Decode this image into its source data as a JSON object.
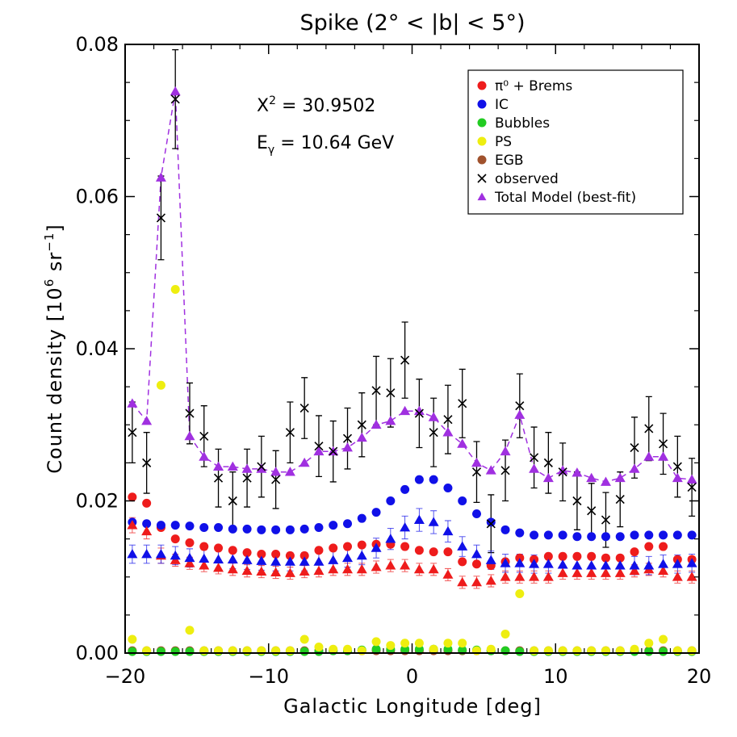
{
  "chart_data": {
    "type": "scatter",
    "title": "Spike (2° < |b| < 5°)",
    "xlabel": "Galactic Longitude [deg]",
    "ylabel": {
      "main": "Count density",
      "unit_open": "[10",
      "unit_sup1": "6",
      "unit_mid": " sr",
      "unit_sup2": "−1",
      "unit_close": "]"
    },
    "xlim": [
      -20,
      20
    ],
    "ylim": [
      0,
      0.08
    ],
    "xticks": [
      -20,
      -10,
      0,
      10,
      20
    ],
    "xtick_labels": [
      "−20",
      "−10",
      "0",
      "10",
      "20"
    ],
    "yticks": [
      0,
      0.02,
      0.04,
      0.06,
      0.08
    ],
    "ytick_labels": [
      "0.00",
      "0.02",
      "0.04",
      "0.06",
      "0.08"
    ],
    "annotations": {
      "chi2_label": "Χ",
      "chi2_sup": "2",
      "chi2_value": " = 30.9502",
      "egamma_label": "E",
      "egamma_sub": "γ",
      "egamma_value": " = 10.64 GeV"
    },
    "legend_position": "top-right",
    "legend": [
      {
        "label": "π⁰ + Brems",
        "marker": "circle",
        "color": "#ee1c1c"
      },
      {
        "label": "IC",
        "marker": "circle",
        "color": "#1010e8"
      },
      {
        "label": "Bubbles",
        "marker": "circle",
        "color": "#22cc22"
      },
      {
        "label": "PS",
        "marker": "circle",
        "color": "#eeee10"
      },
      {
        "label": "EGB",
        "marker": "circle",
        "color": "#a0522d"
      },
      {
        "label": "observed",
        "marker": "x",
        "color": "#000000"
      },
      {
        "label": "Total Model (best-fit)",
        "marker": "triangle",
        "color": "#a030e0"
      }
    ],
    "x": [
      -19.5,
      -18.5,
      -17.5,
      -16.5,
      -15.5,
      -14.5,
      -13.5,
      -12.5,
      -11.5,
      -10.5,
      -9.5,
      -8.5,
      -7.5,
      -6.5,
      -5.5,
      -4.5,
      -3.5,
      -2.5,
      -1.5,
      -0.5,
      0.5,
      1.5,
      2.5,
      3.5,
      4.5,
      5.5,
      6.5,
      7.5,
      8.5,
      9.5,
      10.5,
      11.5,
      12.5,
      13.5,
      14.5,
      15.5,
      16.5,
      17.5,
      18.5,
      19.5
    ],
    "series": [
      {
        "name": "π⁰ + Brems",
        "color": "#ee1c1c",
        "marker": "circle",
        "values": [
          0.0205,
          0.0197,
          0.0165,
          0.015,
          0.0145,
          0.014,
          0.0138,
          0.0135,
          0.0132,
          0.013,
          0.013,
          0.0128,
          0.0128,
          0.0135,
          0.0138,
          0.014,
          0.0142,
          0.0143,
          0.0143,
          0.014,
          0.0135,
          0.0133,
          0.0133,
          0.012,
          0.0117,
          0.0115,
          0.012,
          0.0125,
          0.0123,
          0.0127,
          0.0127,
          0.0127,
          0.0127,
          0.0125,
          0.0125,
          0.0133,
          0.014,
          0.014,
          0.0123,
          0.0123
        ]
      },
      {
        "name": "IC",
        "color": "#1010e8",
        "marker": "circle",
        "values": [
          0.0172,
          0.017,
          0.0168,
          0.0168,
          0.0167,
          0.0165,
          0.0165,
          0.0163,
          0.0163,
          0.0162,
          0.0162,
          0.0162,
          0.0163,
          0.0165,
          0.0168,
          0.017,
          0.0177,
          0.0185,
          0.02,
          0.0215,
          0.0228,
          0.0228,
          0.0217,
          0.02,
          0.0183,
          0.0172,
          0.0162,
          0.0158,
          0.0155,
          0.0155,
          0.0155,
          0.0153,
          0.0153,
          0.0153,
          0.0153,
          0.0155,
          0.0155,
          0.0155,
          0.0155,
          0.0155
        ]
      },
      {
        "name": "Bubbles",
        "color": "#22cc22",
        "marker": "circle",
        "values": [
          0.0002,
          0.0002,
          0.0002,
          0.0002,
          0.0002,
          0.0002,
          0.0002,
          0.0002,
          0.0002,
          0.0002,
          0.0002,
          0.0002,
          0.0002,
          0.0002,
          0.0003,
          0.0003,
          0.0004,
          0.0005,
          0.0005,
          0.0005,
          0.0005,
          0.0005,
          0.0005,
          0.0004,
          0.0004,
          0.0003,
          0.0003,
          0.0002,
          0.0002,
          0.0002,
          0.0002,
          0.0002,
          0.0002,
          0.0002,
          0.0002,
          0.0002,
          0.0002,
          0.0002,
          0.0002,
          0.0002
        ]
      },
      {
        "name": "PS",
        "color": "#eeee10",
        "marker": "circle",
        "values": [
          0.0018,
          0.0003,
          0.0352,
          0.0478,
          0.003,
          0.0003,
          0.0003,
          0.0003,
          0.0003,
          0.0003,
          0.0003,
          0.0003,
          0.0018,
          0.0008,
          0.0005,
          0.0005,
          0.0003,
          0.0015,
          0.001,
          0.0013,
          0.0013,
          0.0005,
          0.0013,
          0.0013,
          0.0003,
          0.0005,
          0.0025,
          0.0078,
          0.0003,
          0.0003,
          0.0003,
          0.0003,
          0.0003,
          0.0003,
          0.0003,
          0.0005,
          0.0013,
          0.0018,
          0.0003,
          0.0003
        ]
      },
      {
        "name": "EGB",
        "color": "#a0522d",
        "marker": "circle",
        "values": [
          0.0003,
          0.0003,
          0.0003,
          0.0003,
          0.0003,
          0.0003,
          0.0003,
          0.0003,
          0.0003,
          0.0003,
          0.0003,
          0.0003,
          0.0003,
          0.0003,
          0.0003,
          0.0003,
          0.0003,
          0.0003,
          0.0003,
          0.0003,
          0.0003,
          0.0003,
          0.0003,
          0.0003,
          0.0003,
          0.0003,
          0.0003,
          0.0003,
          0.0003,
          0.0003,
          0.0003,
          0.0003,
          0.0003,
          0.0003,
          0.0003,
          0.0003,
          0.0003,
          0.0003,
          0.0003,
          0.0003
        ]
      },
      {
        "name": "observed",
        "color": "#000000",
        "marker": "x",
        "values": [
          0.029,
          0.025,
          0.0572,
          0.0728,
          0.0315,
          0.0285,
          0.023,
          0.02,
          0.023,
          0.0245,
          0.0228,
          0.029,
          0.0322,
          0.0272,
          0.0265,
          0.0282,
          0.03,
          0.0345,
          0.0342,
          0.0385,
          0.0315,
          0.029,
          0.0307,
          0.0328,
          0.0238,
          0.017,
          0.024,
          0.0325,
          0.0257,
          0.025,
          0.0238,
          0.02,
          0.0187,
          0.0175,
          0.0202,
          0.027,
          0.0295,
          0.0275,
          0.0245,
          0.0218
        ],
        "errors": [
          0.004,
          0.004,
          0.0055,
          0.0065,
          0.004,
          0.004,
          0.0038,
          0.0038,
          0.0038,
          0.004,
          0.0038,
          0.004,
          0.004,
          0.004,
          0.004,
          0.004,
          0.0042,
          0.0045,
          0.0045,
          0.005,
          0.0045,
          0.0045,
          0.0045,
          0.0045,
          0.004,
          0.0038,
          0.004,
          0.0042,
          0.004,
          0.004,
          0.0038,
          0.0038,
          0.0036,
          0.0036,
          0.0036,
          0.004,
          0.0042,
          0.004,
          0.004,
          0.0038
        ]
      },
      {
        "name": "Total Model (best-fit)",
        "color": "#a030e0",
        "marker": "triangle",
        "line": "dashed",
        "values": [
          0.0328,
          0.0305,
          0.0625,
          0.0738,
          0.0285,
          0.0258,
          0.0245,
          0.0245,
          0.0242,
          0.0242,
          0.0238,
          0.0238,
          0.025,
          0.0265,
          0.0265,
          0.027,
          0.0283,
          0.03,
          0.0305,
          0.0318,
          0.0318,
          0.031,
          0.029,
          0.0275,
          0.025,
          0.024,
          0.0265,
          0.0313,
          0.0242,
          0.023,
          0.024,
          0.0237,
          0.023,
          0.0225,
          0.023,
          0.0242,
          0.0258,
          0.0258,
          0.023,
          0.0228
        ]
      },
      {
        "name": "Total Model π⁰ + Brems component",
        "color": "#ee1c1c",
        "marker": "triangle",
        "values": [
          0.0168,
          0.016,
          0.0128,
          0.0122,
          0.0118,
          0.0115,
          0.0112,
          0.011,
          0.0108,
          0.0107,
          0.0106,
          0.0105,
          0.0107,
          0.0108,
          0.011,
          0.011,
          0.011,
          0.0113,
          0.0115,
          0.0115,
          0.011,
          0.011,
          0.0103,
          0.0093,
          0.0093,
          0.0095,
          0.01,
          0.01,
          0.01,
          0.01,
          0.0105,
          0.0105,
          0.0105,
          0.0105,
          0.0105,
          0.0108,
          0.011,
          0.0108,
          0.01,
          0.01
        ],
        "errors": [
          0.001,
          0.001,
          0.001,
          0.0008,
          0.0008,
          0.0008,
          0.0008,
          0.0008,
          0.0008,
          0.0008,
          0.0008,
          0.0008,
          0.0008,
          0.0008,
          0.0008,
          0.0008,
          0.0008,
          0.0008,
          0.0008,
          0.0008,
          0.0008,
          0.0008,
          0.0008,
          0.0008,
          0.0008,
          0.0008,
          0.0008,
          0.0008,
          0.0008,
          0.0008,
          0.0008,
          0.0008,
          0.0008,
          0.0008,
          0.0008,
          0.0008,
          0.0008,
          0.0008,
          0.0008,
          0.0008
        ]
      },
      {
        "name": "Total Model IC component",
        "color": "#1010e8",
        "marker": "triangle",
        "values": [
          0.013,
          0.013,
          0.013,
          0.0128,
          0.0125,
          0.0124,
          0.0123,
          0.0123,
          0.0122,
          0.0121,
          0.012,
          0.012,
          0.012,
          0.012,
          0.0122,
          0.0125,
          0.0128,
          0.0138,
          0.015,
          0.0165,
          0.0175,
          0.0172,
          0.016,
          0.014,
          0.013,
          0.0122,
          0.0118,
          0.0118,
          0.0117,
          0.0117,
          0.0116,
          0.0115,
          0.0115,
          0.0115,
          0.0115,
          0.0115,
          0.0115,
          0.0117,
          0.0117,
          0.0118
        ],
        "errors": [
          0.0012,
          0.0012,
          0.0012,
          0.0012,
          0.0012,
          0.0012,
          0.0012,
          0.0012,
          0.0012,
          0.0012,
          0.0012,
          0.0012,
          0.0012,
          0.0012,
          0.0012,
          0.0012,
          0.0012,
          0.0013,
          0.0014,
          0.0015,
          0.0015,
          0.0015,
          0.0014,
          0.0013,
          0.0012,
          0.0012,
          0.0012,
          0.0012,
          0.0012,
          0.0012,
          0.0012,
          0.0012,
          0.0012,
          0.0012,
          0.0012,
          0.0012,
          0.0012,
          0.0012,
          0.0012,
          0.0012
        ]
      }
    ]
  }
}
